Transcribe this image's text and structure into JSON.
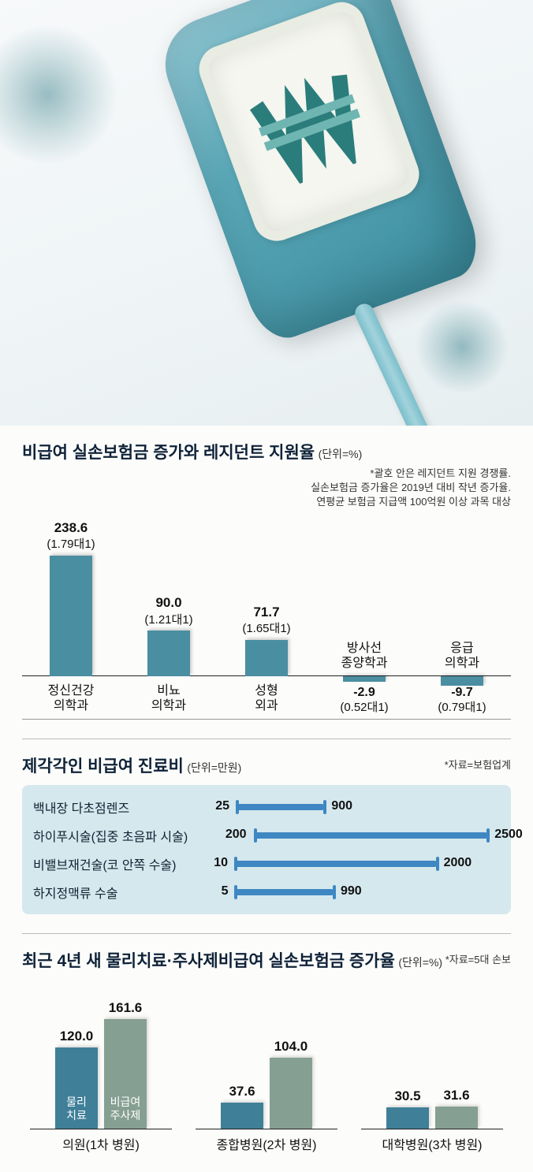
{
  "hero": {
    "symbol_color_dark": "#2a7d7b",
    "symbol_color_light": "#6fb5b1",
    "bag_color": "#4a9aab"
  },
  "chart1": {
    "title": "비급여 실손보험금 증가와 레지던트 지원율",
    "unit": "(단위=%)",
    "note_line1": "*괄호 안은 레지던트 지원 경쟁률.",
    "note_line2": "실손보험금 증가율은 2019년 대비 작년 증가율.",
    "note_line3": "연평균 보험금 지급액 100억원 이상 과목 대상",
    "bar_color": "#4a8ea2",
    "value_scale_max": 250,
    "categories": [
      {
        "label_l1": "정신건강",
        "label_l2": "의학과",
        "value": 238.6,
        "ratio": "(1.79대1)"
      },
      {
        "label_l1": "비뇨",
        "label_l2": "의학과",
        "value": 90.0,
        "ratio": "(1.21대1)"
      },
      {
        "label_l1": "성형",
        "label_l2": "외과",
        "value": 71.7,
        "ratio": "(1.65대1)"
      },
      {
        "label_l1": "방사선",
        "label_l2": "종양학과",
        "value": -2.9,
        "ratio": "(0.52대1)"
      },
      {
        "label_l1": "응급",
        "label_l2": "의학과",
        "value": -9.7,
        "ratio": "(0.79대1)"
      }
    ]
  },
  "chart2": {
    "title": "제각각인 비급여 진료비",
    "unit": "(단위=만원)",
    "source": "*자료=보험업계",
    "panel_bg": "#d5e8ed",
    "bar_color": "#3e87c2",
    "domain_min": 0,
    "domain_max": 2600,
    "rows": [
      {
        "label": "백내장 다초점렌즈",
        "min": 25,
        "max": 900
      },
      {
        "label": "하이푸시술(집중 초음파 시술)",
        "min": 200,
        "max": 2500
      },
      {
        "label": "비밸브재건술(코 안쪽 수술)",
        "min": 10,
        "max": 2000
      },
      {
        "label": "하지정맥류 수술",
        "min": 5,
        "max": 990
      }
    ]
  },
  "chart3": {
    "title": "최근 4년 새 물리치료·주사제비급여 실손보험금 증가율",
    "unit": "(단위=%)",
    "source": "*자료=5대 손보",
    "series": [
      {
        "key": "s1",
        "label_l1": "물리",
        "label_l2": "치료",
        "color": "#3f7f98"
      },
      {
        "key": "s2",
        "label_l1": "비급여",
        "label_l2": "주사제",
        "color": "#869f93"
      }
    ],
    "value_scale_max": 170,
    "groups": [
      {
        "label": "의원(1차 병원)",
        "s1": 120.0,
        "s2": 161.6
      },
      {
        "label": "종합병원(2차 병원)",
        "s1": 37.6,
        "s2": 104.0
      },
      {
        "label": "대학병원(3차 병원)",
        "s1": 30.5,
        "s2": 31.6
      }
    ]
  }
}
